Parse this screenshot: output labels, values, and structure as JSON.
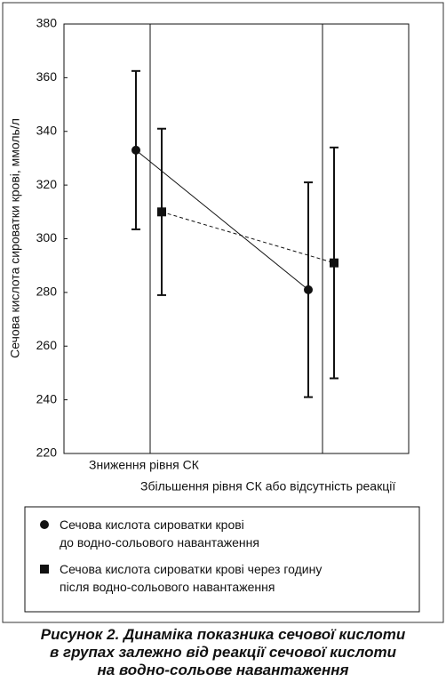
{
  "chart_data": {
    "type": "errorbar",
    "ylabel": "Сечова кислота сироватки крові, ммоль/л",
    "categories": [
      "Зниження рівня СК",
      "Збільшення рівня СК або відсутність реакції"
    ],
    "series": [
      {
        "name": "Сечова кислота сироватки крові\nдо водно-сольового навантаження",
        "color": "#111111",
        "marker": "circle",
        "line_style": "solid",
        "values": [
          333,
          281
        ],
        "errors": [
          29.5,
          40
        ]
      },
      {
        "name": "Сечова кислота сироватки крові через годину\nпісля водно-сольового навантаження",
        "color": "#111111",
        "marker": "square",
        "line_style": "dashed",
        "values": [
          310,
          291
        ],
        "errors": [
          31,
          43
        ]
      }
    ],
    "ylim": [
      220,
      380
    ],
    "yticks": [
      220,
      240,
      260,
      280,
      300,
      320,
      340,
      360,
      380
    ],
    "caption": "Рисунок 2. Динаміка показника сечової кислоти\nв групах залежно від реакції сечової кислоти\nна водно-сольове навантаження"
  }
}
